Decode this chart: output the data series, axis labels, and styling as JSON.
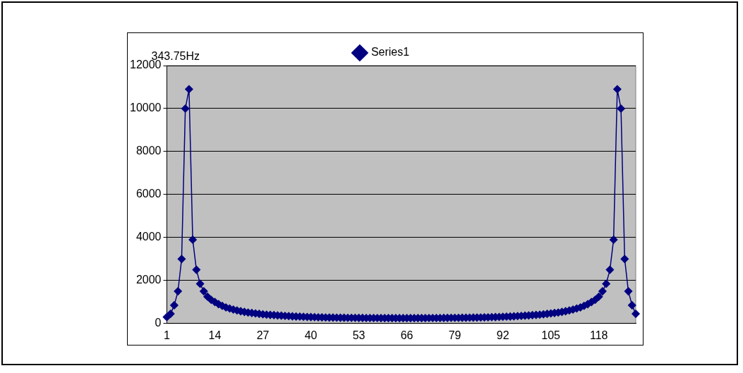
{
  "chart_data": {
    "type": "line",
    "annotations": [
      "343.75Hz"
    ],
    "categories": [
      "1",
      null,
      null,
      null,
      null,
      null,
      null,
      null,
      null,
      null,
      null,
      null,
      null,
      "14",
      null,
      null,
      null,
      null,
      null,
      null,
      null,
      null,
      null,
      null,
      null,
      null,
      "27",
      null,
      null,
      null,
      null,
      null,
      null,
      null,
      null,
      null,
      null,
      null,
      null,
      "40",
      null,
      null,
      null,
      null,
      null,
      null,
      null,
      null,
      null,
      null,
      null,
      null,
      "53",
      null,
      null,
      null,
      null,
      null,
      null,
      null,
      null,
      null,
      null,
      null,
      null,
      "66",
      null,
      null,
      null,
      null,
      null,
      null,
      null,
      null,
      null,
      null,
      null,
      null,
      "79",
      null,
      null,
      null,
      null,
      null,
      null,
      null,
      null,
      null,
      null,
      null,
      null,
      "92",
      null,
      null,
      null,
      null,
      null,
      null,
      null,
      null,
      null,
      null,
      null,
      null,
      "105",
      null,
      null,
      null,
      null,
      null,
      null,
      null,
      null,
      null,
      null,
      null,
      null,
      "118",
      null,
      null,
      null,
      null,
      null,
      null,
      null,
      null,
      null,
      null
    ],
    "series": [
      {
        "name": "Series1",
        "color": "#000080",
        "values": [
          300,
          450,
          850,
          1500,
          3000,
          10000,
          10900,
          3900,
          2500,
          1850,
          1500,
          1250,
          1100,
          1000,
          900,
          820,
          750,
          700,
          650,
          610,
          570,
          540,
          510,
          490,
          470,
          450,
          430,
          410,
          400,
          390,
          375,
          365,
          355,
          345,
          335,
          325,
          320,
          315,
          305,
          300,
          295,
          290,
          285,
          280,
          278,
          275,
          272,
          270,
          268,
          265,
          263,
          262,
          260,
          258,
          257,
          256,
          255,
          254,
          253,
          252,
          252,
          251,
          251,
          250,
          250,
          250,
          251,
          251,
          252,
          252,
          253,
          254,
          255,
          256,
          257,
          258,
          260,
          262,
          263,
          265,
          268,
          270,
          272,
          275,
          278,
          280,
          285,
          290,
          295,
          300,
          305,
          315,
          320,
          325,
          335,
          345,
          355,
          365,
          375,
          390,
          400,
          410,
          430,
          450,
          470,
          490,
          510,
          540,
          570,
          610,
          650,
          700,
          750,
          820,
          900,
          1000,
          1100,
          1250,
          1500,
          1850,
          2500,
          3900,
          10900,
          10000,
          3000,
          1500,
          850,
          450
        ]
      }
    ],
    "ylim": [
      0,
      12000
    ],
    "yticks": [
      0,
      2000,
      4000,
      6000,
      8000,
      10000,
      12000
    ],
    "grid": "y",
    "legend": "top",
    "marker": "diamond",
    "line_style": "solid"
  }
}
